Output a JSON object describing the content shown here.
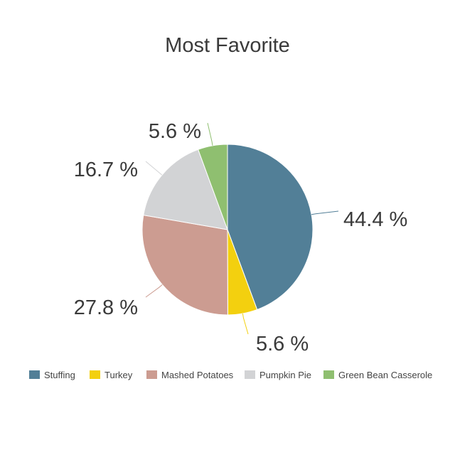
{
  "chart_data": {
    "type": "pie",
    "title": "Most Favorite",
    "series": [
      {
        "name": "Stuffing",
        "value": 44.4,
        "label": "44.4 %",
        "color": "#527f97"
      },
      {
        "name": "Turkey",
        "value": 5.6,
        "label": "5.6 %",
        "color": "#f3d00f"
      },
      {
        "name": "Mashed Potatoes",
        "value": 27.8,
        "label": "27.8 %",
        "color": "#cc9c91"
      },
      {
        "name": "Pumpkin Pie",
        "value": 16.7,
        "label": "16.7 %",
        "color": "#d2d3d5"
      },
      {
        "name": "Green Bean Casserole",
        "value": 5.6,
        "label": "5.6 %",
        "color": "#8fbf70"
      }
    ],
    "start_angle": "12 o'clock",
    "direction": "clockwise",
    "legend": "bottom"
  }
}
